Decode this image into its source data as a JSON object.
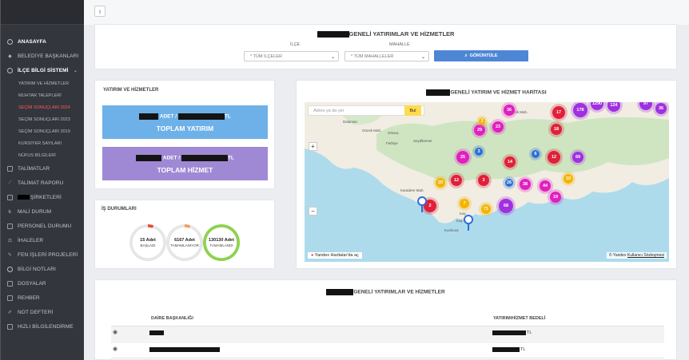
{
  "nav": {
    "items": [
      {
        "label": "ANASAYFA",
        "icon": "dashboard-icon",
        "active": true
      },
      {
        "label": "BELEDİYE BAŞKANLARI",
        "icon": "pin-icon"
      },
      {
        "label": "İLÇE BİLGİ SİSTEMİ",
        "icon": "info-icon",
        "active": true
      }
    ],
    "subitems": [
      {
        "label": "YATIRIM VE HİZMETLER"
      },
      {
        "label": "MUHTAR TALEPLERİ"
      },
      {
        "label": "SEÇİM SONUÇLARI 2024",
        "highlight": "#ff5a5a"
      },
      {
        "label": "SEÇİM SONUÇLARI 2023"
      },
      {
        "label": "SEÇİM SONUÇLARI 2019"
      },
      {
        "label": "KURSİYER SAYILARI"
      },
      {
        "label": "NÜFUS BİLGİLERİ"
      }
    ],
    "items2": [
      {
        "label": "TALİMATLAR",
        "icon": "list-icon"
      },
      {
        "label": "TALİMAT RAPORU",
        "icon": "chart-icon"
      },
      {
        "label": "ŞİRKETLERİ",
        "icon": "building-icon"
      },
      {
        "label": "MALİ DURUM",
        "icon": "lira-icon"
      },
      {
        "label": "PERSONEL DURUMU",
        "icon": "users-icon"
      },
      {
        "label": "İHALELER",
        "icon": "gavel-icon"
      },
      {
        "label": "FEN İŞLERİ PROJELERİ",
        "icon": "wrench-icon"
      },
      {
        "label": "BİLGİ NOTLARI",
        "icon": "note-icon"
      },
      {
        "label": "DOSYALAR",
        "icon": "folder-icon"
      },
      {
        "label": "REHBER",
        "icon": "book-icon"
      },
      {
        "label": "NOT DEFTERİ",
        "icon": "pencil-icon"
      },
      {
        "label": "HIZLI BİLGİLENDİRME",
        "icon": "monitor-icon"
      }
    ]
  },
  "topbar": {
    "toggle": "ı"
  },
  "filter": {
    "title": "GENELİ YATIRIMLAR VE HİZMETLER",
    "district_label": "İLÇE",
    "district_value": "* TÜM İLÇELER",
    "neighborhood_label": "MAHALLE",
    "neighborhood_value": "* TÜM MAHALLELER",
    "button": "GÖRÜNTÜLE"
  },
  "summary": {
    "title": "YATIRIM VE HİZMETLER",
    "investment": {
      "count_suffix": "ADET /",
      "amount_suffix": "TL",
      "label": "TOPLAM YATIRIM",
      "color": "#6db1e8"
    },
    "service": {
      "count_suffix": "ADET /",
      "amount_suffix": "TL",
      "label": "TOPLAM HİZMET",
      "color": "#9f89d4"
    }
  },
  "status": {
    "title": "İŞ DURUMLARI",
    "items": [
      {
        "count": "15 Adet",
        "label": "BAŞLADI",
        "progress": 0.05,
        "color": "#e74c3c"
      },
      {
        "count": "6167 Adet",
        "label": "TAMAMLANIYOR",
        "progress": 0.05,
        "color": "#f39c5a"
      },
      {
        "count": "130130 Adet",
        "label": "TAMAMLANDI",
        "progress": 1.0,
        "color": "#8fd14f"
      }
    ]
  },
  "map": {
    "title": "GENELİ YATIRIM VE HİZMET HARİTASI",
    "search_placeholder": "Adres ya da yer",
    "search_button": "Bul",
    "brand": "Yandex Haritalar'da aç",
    "copyright_prefix": "© Yandex ",
    "terms_link": "Kullanıcı Sözleşmesi",
    "towns": [
      "Dalaman",
      "Göcek Mah.",
      "Ortaca",
      "Fethiye",
      "Seydikemer",
      "Kaş",
      "Karadere Mah.",
      "İmecik Mah.",
      "Kaş Mah.",
      "Kumluca"
    ],
    "clusters": [
      "36",
      "29",
      "17",
      "178",
      "1290",
      "124",
      "97",
      "36",
      "23",
      "3",
      "18",
      "69",
      "25",
      "14",
      "3",
      "12",
      "6",
      "10",
      "20",
      "12",
      "3",
      "26",
      "38",
      "44",
      "19",
      "2",
      "7",
      "71",
      "68"
    ]
  },
  "table": {
    "title": "GENELİ YATIRIMLAR VE HİZMETLER",
    "col1": "DAİRE BAŞKANLIĞI",
    "col2": "YATIRIM/HİZMET BEDELİ",
    "rows": [
      {
        "unit": "TL"
      },
      {
        "unit": "TL"
      }
    ]
  }
}
